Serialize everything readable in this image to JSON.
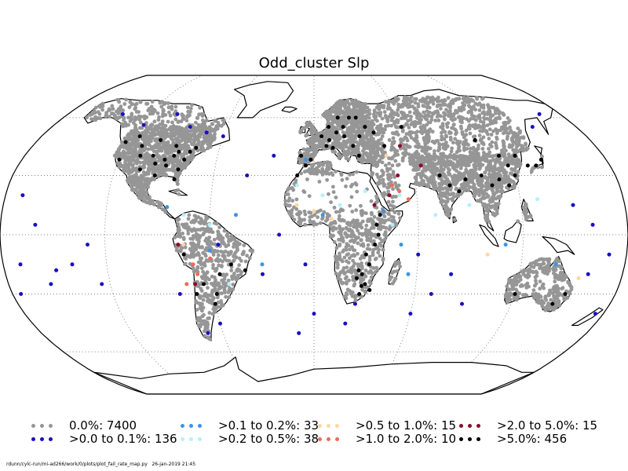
{
  "title": "Odd_cluster Slp",
  "footer": "rdunn/cylc-run/mi-ad266/work/0/plots/plot_fail_rate_map.py   26-jan-2019 21:45",
  "colors": {
    "ocean": "#ffffff",
    "coast": "#000000",
    "grid": "#555555"
  },
  "legend": [
    {
      "label": "0.0%: 7400",
      "color": "#969696"
    },
    {
      "label": ">0.0 to 0.1%: 136",
      "color": "#1a0fbf"
    },
    {
      "label": ">0.1 to 0.2%: 33",
      "color": "#3c94e6"
    },
    {
      "label": ">0.2 to 0.5%: 38",
      "color": "#b4f0fa"
    },
    {
      "label": ">0.5 to 1.0%: 15",
      "color": "#ffd7a0"
    },
    {
      "label": ">1.0 to 2.0%: 10",
      "color": "#f06a5a"
    },
    {
      "label": ">2.0 to 5.0%: 15",
      "color": "#8c0a2a"
    },
    {
      "label": ">5.0%: 456",
      "color": "#000000"
    }
  ]
}
